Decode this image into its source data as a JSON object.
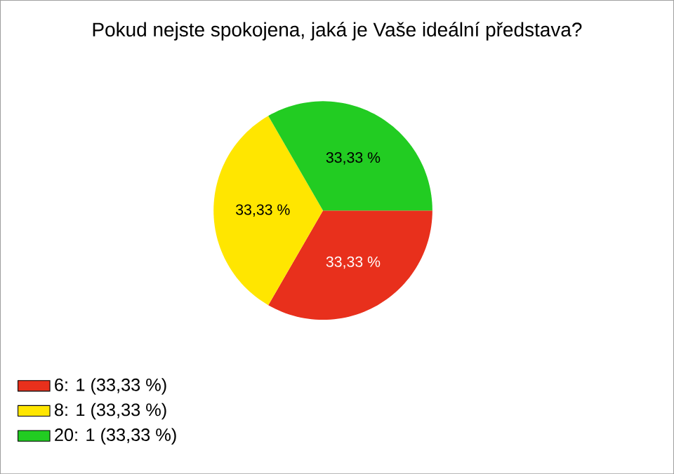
{
  "chart_data": {
    "type": "pie",
    "title": "Pokud nejste spokojena, jaká je Vaše ideální představa?",
    "categories": [
      "6: 1 (33,33 %)",
      "8: 1 (33,33 %)",
      "20: 1 (33,33 %)"
    ],
    "values": [
      33.33,
      33.33,
      33.33
    ],
    "colors": [
      "#e8301c",
      "#ffe600",
      "#22cc22"
    ],
    "value_labels": [
      "33,33 %",
      "33,33 %",
      "33,33 %"
    ],
    "legend": "bottom left"
  }
}
